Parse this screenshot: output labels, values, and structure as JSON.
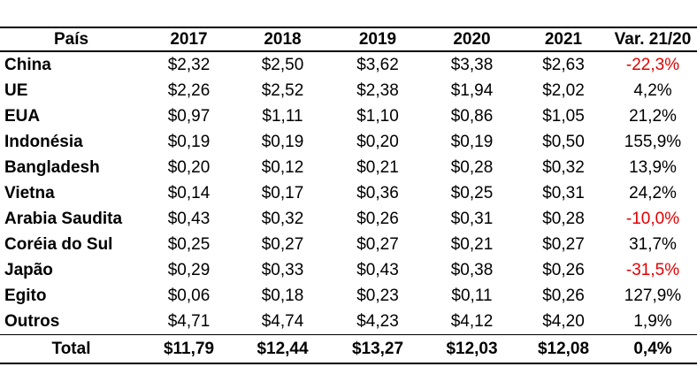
{
  "table": {
    "columns": [
      "País",
      "2017",
      "2018",
      "2019",
      "2020",
      "2021",
      "Var. 21/20"
    ],
    "rows": [
      {
        "country": "China",
        "values": [
          "$2,32",
          "$2,50",
          "$3,62",
          "$3,38",
          "$2,63"
        ],
        "var": "-22,3%",
        "var_negative": true
      },
      {
        "country": "UE",
        "values": [
          "$2,26",
          "$2,52",
          "$2,38",
          "$1,94",
          "$2,02"
        ],
        "var": "4,2%",
        "var_negative": false
      },
      {
        "country": "EUA",
        "values": [
          "$0,97",
          "$1,11",
          "$1,10",
          "$0,86",
          "$1,05"
        ],
        "var": "21,2%",
        "var_negative": false
      },
      {
        "country": "Indonésia",
        "values": [
          "$0,19",
          "$0,19",
          "$0,20",
          "$0,19",
          "$0,50"
        ],
        "var": "155,9%",
        "var_negative": false
      },
      {
        "country": "Bangladesh",
        "values": [
          "$0,20",
          "$0,12",
          "$0,21",
          "$0,28",
          "$0,32"
        ],
        "var": "13,9%",
        "var_negative": false
      },
      {
        "country": "Vietna",
        "values": [
          "$0,14",
          "$0,17",
          "$0,36",
          "$0,25",
          "$0,31"
        ],
        "var": "24,2%",
        "var_negative": false
      },
      {
        "country": "Arabia Saudita",
        "values": [
          "$0,43",
          "$0,32",
          "$0,26",
          "$0,31",
          "$0,28"
        ],
        "var": "-10,0%",
        "var_negative": true
      },
      {
        "country": "Coréia do Sul",
        "values": [
          "$0,25",
          "$0,27",
          "$0,27",
          "$0,21",
          "$0,27"
        ],
        "var": "31,7%",
        "var_negative": false
      },
      {
        "country": "Japão",
        "values": [
          "$0,29",
          "$0,33",
          "$0,43",
          "$0,38",
          "$0,26"
        ],
        "var": "-31,5%",
        "var_negative": true
      },
      {
        "country": "Egito",
        "values": [
          "$0,06",
          "$0,18",
          "$0,23",
          "$0,11",
          "$0,26"
        ],
        "var": "127,9%",
        "var_negative": false
      },
      {
        "country": "Outros",
        "values": [
          "$4,71",
          "$4,74",
          "$4,23",
          "$4,12",
          "$4,20"
        ],
        "var": "1,9%",
        "var_negative": false
      }
    ],
    "total": {
      "label": "Total",
      "values": [
        "$11,79",
        "$12,44",
        "$13,27",
        "$12,03",
        "$12,08"
      ],
      "var": "0,4%",
      "var_negative": false
    }
  },
  "colors": {
    "text": "#000000",
    "border": "#000000",
    "negative_var": "#e00000",
    "background": "#ffffff"
  },
  "chart_data": {
    "type": "table",
    "title": "",
    "categories": [
      "2017",
      "2018",
      "2019",
      "2020",
      "2021"
    ],
    "row_header_label": "País",
    "variation_column_label": "Var. 21/20",
    "series": [
      {
        "name": "China",
        "values": [
          2.32,
          2.5,
          3.62,
          3.38,
          2.63
        ],
        "var_21_20_pct": -22.3
      },
      {
        "name": "UE",
        "values": [
          2.26,
          2.52,
          2.38,
          1.94,
          2.02
        ],
        "var_21_20_pct": 4.2
      },
      {
        "name": "EUA",
        "values": [
          0.97,
          1.11,
          1.1,
          0.86,
          1.05
        ],
        "var_21_20_pct": 21.2
      },
      {
        "name": "Indonésia",
        "values": [
          0.19,
          0.19,
          0.2,
          0.19,
          0.5
        ],
        "var_21_20_pct": 155.9
      },
      {
        "name": "Bangladesh",
        "values": [
          0.2,
          0.12,
          0.21,
          0.28,
          0.32
        ],
        "var_21_20_pct": 13.9
      },
      {
        "name": "Vietna",
        "values": [
          0.14,
          0.17,
          0.36,
          0.25,
          0.31
        ],
        "var_21_20_pct": 24.2
      },
      {
        "name": "Arabia Saudita",
        "values": [
          0.43,
          0.32,
          0.26,
          0.31,
          0.28
        ],
        "var_21_20_pct": -10.0
      },
      {
        "name": "Coréia do Sul",
        "values": [
          0.25,
          0.27,
          0.27,
          0.21,
          0.27
        ],
        "var_21_20_pct": 31.7
      },
      {
        "name": "Japão",
        "values": [
          0.29,
          0.33,
          0.43,
          0.38,
          0.26
        ],
        "var_21_20_pct": -31.5
      },
      {
        "name": "Egito",
        "values": [
          0.06,
          0.18,
          0.23,
          0.11,
          0.26
        ],
        "var_21_20_pct": 127.9
      },
      {
        "name": "Outros",
        "values": [
          4.71,
          4.74,
          4.23,
          4.12,
          4.2
        ],
        "var_21_20_pct": 1.9
      }
    ],
    "total": {
      "name": "Total",
      "values": [
        11.79,
        12.44,
        13.27,
        12.03,
        12.08
      ],
      "var_21_20_pct": 0.4
    },
    "value_format": "currency-dollar-comma-decimal",
    "grid": false,
    "legend": false
  }
}
